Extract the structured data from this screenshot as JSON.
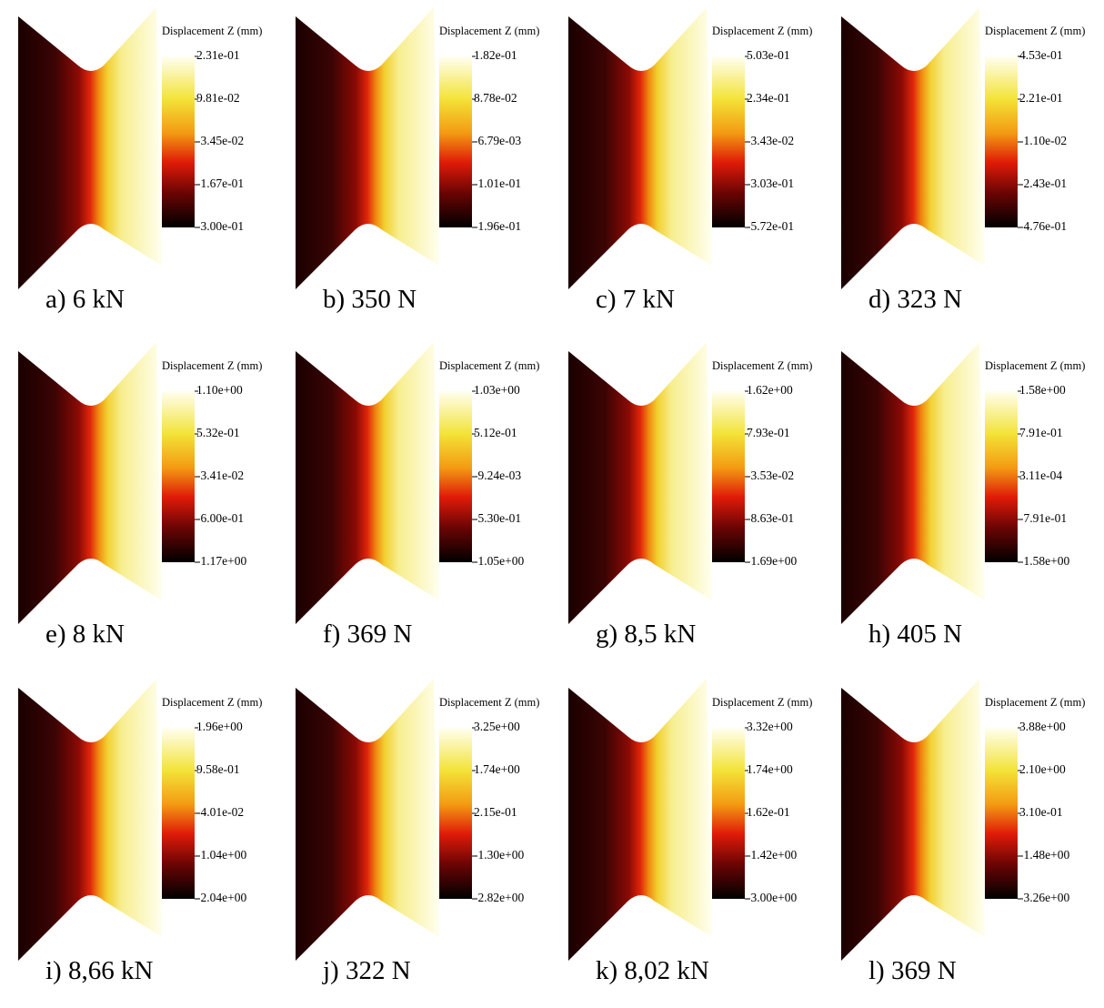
{
  "panels": [
    {
      "caption": "a) 6 kN",
      "legend_title": "Displacement Z (mm)",
      "ticks": [
        "2.31e-01",
        "9.81e-02",
        "-3.45e-02",
        "-1.67e-01",
        "-3.00e-01"
      ]
    },
    {
      "caption": "b) 350 N",
      "legend_title": "Displacement Z (mm)",
      "ticks": [
        "1.82e-01",
        "8.78e-02",
        "-6.79e-03",
        "-1.01e-01",
        "-1.96e-01"
      ]
    },
    {
      "caption": "c) 7 kN",
      "legend_title": "Displacement Z (mm)",
      "ticks": [
        "5.03e-01",
        "2.34e-01",
        "-3.43e-02",
        "-3.03e-01",
        "-5.72e-01"
      ]
    },
    {
      "caption": "d) 323 N",
      "legend_title": "Displacement Z (mm)",
      "ticks": [
        "4.53e-01",
        "2.21e-01",
        "-1.10e-02",
        "-2.43e-01",
        "-4.76e-01"
      ]
    },
    {
      "caption": "e) 8 kN",
      "legend_title": "Displacement Z (mm)",
      "ticks": [
        "1.10e+00",
        "5.32e-01",
        "-3.41e-02",
        "-6.00e-01",
        "-1.17e+00"
      ]
    },
    {
      "caption": "f) 369 N",
      "legend_title": "Displacement Z (mm)",
      "ticks": [
        "1.03e+00",
        "5.12e-01",
        "-9.24e-03",
        "-5.30e-01",
        "-1.05e+00"
      ]
    },
    {
      "caption": "g) 8,5 kN",
      "legend_title": "Displacement Z (mm)",
      "ticks": [
        "1.62e+00",
        "7.93e-01",
        "-3.53e-02",
        "-8.63e-01",
        "-1.69e+00"
      ]
    },
    {
      "caption": "h) 405 N",
      "legend_title": "Displacement Z (mm)",
      "ticks": [
        "1.58e+00",
        "7.91e-01",
        "3.11e-04",
        "-7.91e-01",
        "-1.58e+00"
      ]
    },
    {
      "caption": "i) 8,66 kN",
      "legend_title": "Displacement Z (mm)",
      "ticks": [
        "1.96e+00",
        "9.58e-01",
        "-4.01e-02",
        "-1.04e+00",
        "-2.04e+00"
      ]
    },
    {
      "caption": "j) 322 N",
      "legend_title": "Displacement Z (mm)",
      "ticks": [
        "3.25e+00",
        "1.74e+00",
        "2.15e-01",
        "-1.30e+00",
        "-2.82e+00"
      ]
    },
    {
      "caption": "k) 8,02 kN",
      "legend_title": "Displacement Z (mm)",
      "ticks": [
        "3.32e+00",
        "1.74e+00",
        "1.62e-01",
        "-1.42e+00",
        "-3.00e+00"
      ]
    },
    {
      "caption": "l) 369 N",
      "legend_title": "Displacement Z (mm)",
      "ticks": [
        "3.88e+00",
        "2.10e+00",
        "3.10e-01",
        "-1.48e+00",
        "-3.26e+00"
      ]
    }
  ]
}
